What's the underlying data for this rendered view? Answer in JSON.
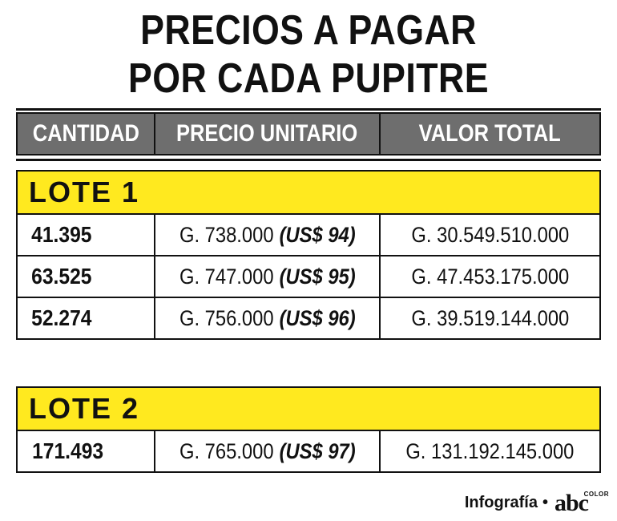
{
  "title": {
    "line1": "PRECIOS A PAGAR",
    "line2": "POR CADA PUPITRE"
  },
  "table": {
    "headers": [
      "CANTIDAD",
      "PRECIO UNITARIO",
      "VALOR TOTAL"
    ],
    "lotes": [
      {
        "label": "LOTE 1",
        "rows": [
          {
            "cantidad": "41.395",
            "precio": "G. 738.000",
            "usd": "(US$ 94)",
            "total": "G. 30.549.510.000"
          },
          {
            "cantidad": "63.525",
            "precio": "G. 747.000",
            "usd": "(US$ 95)",
            "total": "G. 47.453.175.000"
          },
          {
            "cantidad": "52.274",
            "precio": "G. 756.000",
            "usd": "(US$ 96)",
            "total": "G. 39.519.144.000"
          }
        ]
      },
      {
        "label": "LOTE 2",
        "rows": [
          {
            "cantidad": "171.493",
            "precio": "G. 765.000",
            "usd": "(US$ 97)",
            "total": "G. 131.192.145.000"
          }
        ]
      }
    ]
  },
  "footer": {
    "credit": "Infografía",
    "separator": "•",
    "logo": "abc",
    "logo_sub": "COLOR"
  },
  "colors": {
    "header_bg": "#6e6e6e",
    "lote_bg": "#ffe91f"
  }
}
